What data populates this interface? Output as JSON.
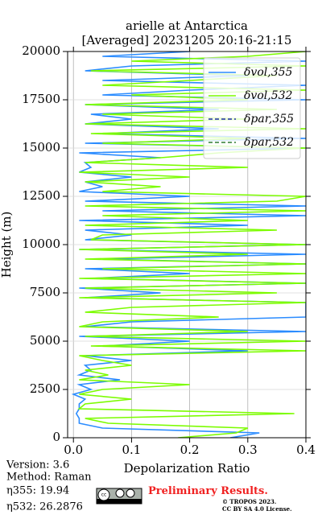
{
  "chart_data": {
    "type": "line",
    "title": "arielle at Antarctica",
    "subtitle": "[Averaged] 20231205 20:16-21:15",
    "x_label": "Depolarization Ratio",
    "y_label": "Height (m)",
    "xlim": [
      -0.01,
      0.4
    ],
    "xticks": [
      {
        "value": 0,
        "label": "0.0"
      },
      0.1,
      0.2,
      0.3,
      0.4
    ],
    "ylim": [
      0,
      20000
    ],
    "yticks": [
      0,
      2500,
      5000,
      7500,
      10000,
      12500,
      15000,
      17500,
      20000
    ],
    "grid": true,
    "legend": "upper right",
    "heights": [
      0,
      250,
      500,
      750,
      1000,
      1250,
      1500,
      1750,
      2000,
      2250,
      2500,
      2750,
      3000,
      3250,
      3500,
      3750,
      4000,
      4250,
      4500,
      4750,
      5000,
      5250,
      5500,
      5750,
      6000,
      6250,
      6500,
      6750,
      7000,
      7250,
      7500,
      7750,
      8000,
      8250,
      8500,
      8750,
      9000,
      9250,
      9500,
      9750,
      10000,
      10250,
      10500,
      10750,
      11000,
      11250,
      11500,
      11750,
      12000,
      12250,
      12500,
      12750,
      13000,
      13250,
      13500,
      13750,
      14000,
      14250,
      14500,
      14750,
      15000,
      15250,
      15500,
      15750,
      16000,
      16250,
      16500,
      16750,
      17000,
      17250,
      17500,
      17750,
      18000,
      18250,
      18500,
      18750,
      19000,
      19250,
      19500,
      19750,
      20000
    ],
    "series": [
      {
        "name": "δvol,355",
        "color": "#2b8cff",
        "dash": "solid",
        "values": [
          0.27,
          0.32,
          0.05,
          0.01,
          0.01,
          0.005,
          0.01,
          0.01,
          0.02,
          0.0,
          0.03,
          0.01,
          0.08,
          0.01,
          0.03,
          0.02,
          0.1,
          0.02,
          0.3,
          0.05,
          0.2,
          0.01,
          0.4,
          0.02,
          0.1,
          0.4,
          0.4,
          0.4,
          0.4,
          0.02,
          0.15,
          0.01,
          0.4,
          0.03,
          0.2,
          0.02,
          0.4,
          0.05,
          0.4,
          0.01,
          0.4,
          0.02,
          0.1,
          0.02,
          0.3,
          0.01,
          0.4,
          0.05,
          0.4,
          0.02,
          0.2,
          0.01,
          0.05,
          0.02,
          0.1,
          0.01,
          0.03,
          0.02,
          0.15,
          0.01,
          0.4,
          0.02,
          0.4,
          0.05,
          0.25,
          0.02,
          0.1,
          0.03,
          0.25,
          0.02,
          0.4,
          0.05,
          0.2,
          0.4,
          0.05,
          0.3,
          0.02,
          0.1,
          0.4,
          0.05,
          0.2
        ]
      },
      {
        "name": "δvol,532",
        "color": "#7cfc00",
        "dash": "solid",
        "values": [
          0.18,
          0.28,
          0.3,
          0.06,
          0.02,
          0.38,
          0.01,
          0.02,
          0.1,
          0.01,
          0.05,
          0.2,
          0.01,
          0.06,
          0.02,
          0.1,
          0.05,
          0.01,
          0.4,
          0.03,
          0.4,
          0.02,
          0.3,
          0.01,
          0.05,
          0.25,
          0.02,
          0.1,
          0.4,
          0.01,
          0.35,
          0.02,
          0.4,
          0.01,
          0.4,
          0.05,
          0.4,
          0.02,
          0.3,
          0.01,
          0.4,
          0.03,
          0.05,
          0.35,
          0.02,
          0.3,
          0.05,
          0.4,
          0.02,
          0.35,
          0.4,
          0.05,
          0.15,
          0.02,
          0.2,
          0.01,
          0.3,
          0.02,
          0.15,
          0.25,
          0.4,
          0.05,
          0.3,
          0.03,
          0.4,
          0.02,
          0.3,
          0.05,
          0.35,
          0.02,
          0.3,
          0.1,
          0.4,
          0.05,
          0.2,
          0.35,
          0.03,
          0.4,
          0.1,
          0.3,
          0.4
        ]
      },
      {
        "name": "δpar,355",
        "color": "#1f2fa8",
        "dash": "dashed",
        "values": []
      },
      {
        "name": "δpar,532",
        "color": "#2e7d32",
        "dash": "dashed",
        "values": []
      }
    ]
  },
  "footer": {
    "version": "Version: 3.6",
    "method": "Method: Raman",
    "eta355": "η355:  19.94",
    "eta532": "η532: 26.2876",
    "preliminary": "Preliminary Results.",
    "copyright": "© TROPOS 2023.",
    "license": "CC BY SA 4.0 License."
  }
}
